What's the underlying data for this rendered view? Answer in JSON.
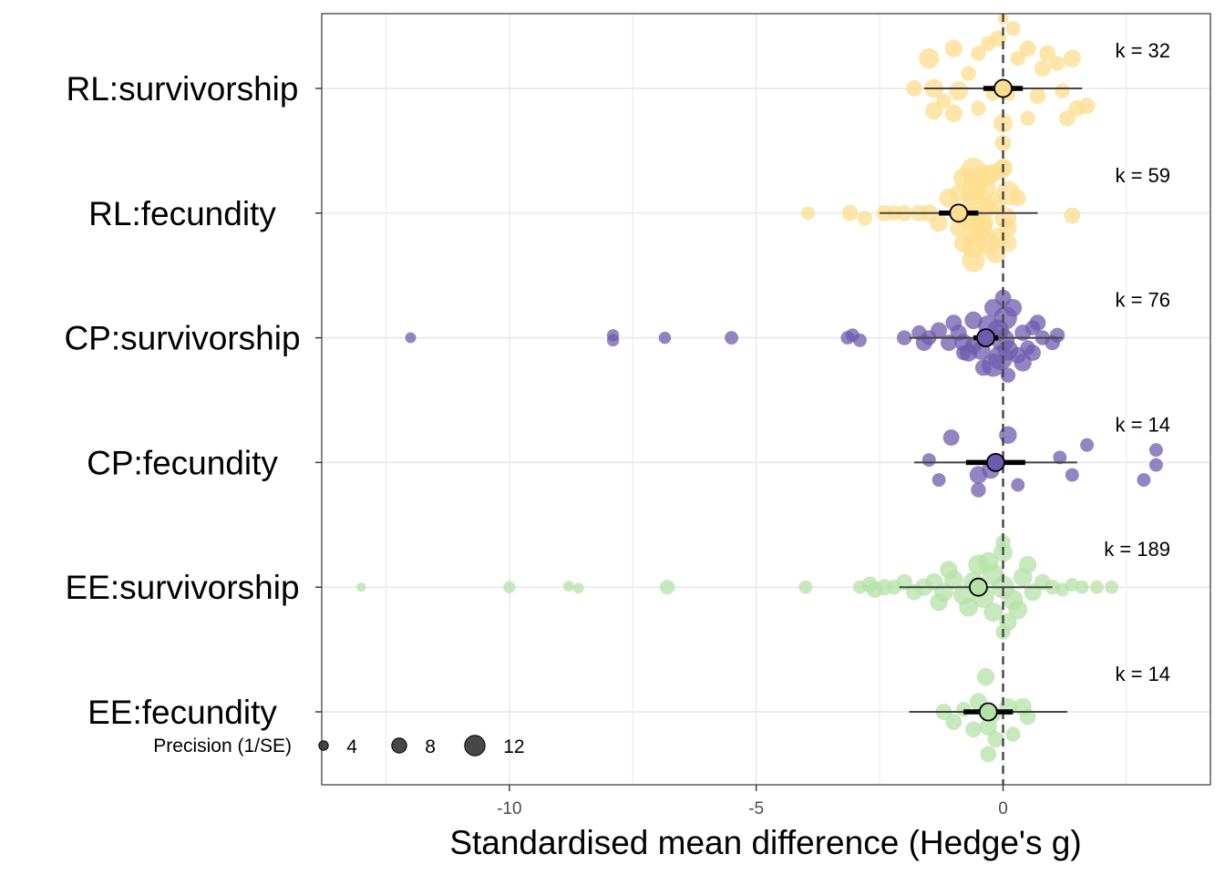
{
  "chart_data": {
    "type": "orchard",
    "xlabel": "Standardised mean difference (Hedge's g)",
    "ylabel": "",
    "xlim": [
      -13.8,
      4.2
    ],
    "xticks": [
      -10,
      -5,
      0
    ],
    "xtick_labels": [
      "-10",
      "-5",
      "0"
    ],
    "grid": true,
    "reference_line_x": 0,
    "legend": {
      "title": "Precision (1/SE)",
      "values": [
        4,
        8,
        12
      ],
      "labels": [
        "4",
        "8",
        "12"
      ],
      "placement": "bottom-left"
    },
    "categories": [
      {
        "label": "RL:survivorship",
        "k": 32,
        "k_text": "k = 32",
        "color": "#FEDE8E",
        "estimate": 0.0,
        "ci": [
          -0.4,
          0.4
        ],
        "pi": [
          -1.6,
          1.6
        ],
        "points": [
          [
            0,
            11,
            0.7
          ],
          [
            0,
            5,
            -1.4
          ],
          [
            -0.1,
            9,
            -1.0
          ],
          [
            0.2,
            8,
            -1.2
          ],
          [
            -0.3,
            8,
            -0.9
          ],
          [
            0.3,
            8,
            -0.6
          ],
          [
            -0.5,
            8,
            -0.7
          ],
          [
            0.5,
            9,
            -0.8
          ],
          [
            0.9,
            9,
            -0.7
          ],
          [
            -1.0,
            10,
            -0.8
          ],
          [
            1.4,
            10,
            -0.6
          ],
          [
            -1.5,
            12,
            -0.6
          ],
          [
            1.1,
            8,
            -0.5
          ],
          [
            0.8,
            9,
            -0.4
          ],
          [
            -0.7,
            8,
            -0.3
          ],
          [
            -1.8,
            9,
            0.0
          ],
          [
            1.7,
            9,
            0.35
          ],
          [
            -1.4,
            11,
            0.0
          ],
          [
            -0.9,
            11,
            0.05
          ],
          [
            0.7,
            9,
            0.15
          ],
          [
            0.1,
            8,
            0.1
          ],
          [
            -0.2,
            8,
            0.1
          ],
          [
            -1.2,
            8,
            0.25
          ],
          [
            1.2,
            8,
            0.05
          ],
          [
            -1.4,
            10,
            0.45
          ],
          [
            1.5,
            9,
            0.4
          ],
          [
            -1.0,
            10,
            0.5
          ],
          [
            -0.5,
            8,
            0.4
          ],
          [
            0.5,
            8,
            0.6
          ],
          [
            1.3,
            9,
            0.6
          ],
          [
            0,
            9,
            1.1
          ],
          [
            0,
            9,
            1.6
          ]
        ]
      },
      {
        "label": "RL:fecundity",
        "k": 59,
        "k_text": "k = 59",
        "color": "#FEDE8E",
        "estimate": -0.9,
        "ci": [
          -1.3,
          -0.5
        ],
        "pi": [
          -2.5,
          0.7
        ],
        "points": [
          [
            -3.95,
            7,
            0
          ],
          [
            -3.1,
            9,
            0
          ],
          [
            -2.8,
            8,
            0.1
          ],
          [
            -2.2,
            8,
            0
          ],
          [
            -2.4,
            9,
            0
          ],
          [
            -2.0,
            9,
            0
          ],
          [
            -1.7,
            9,
            0
          ],
          [
            -1.5,
            10,
            0
          ],
          [
            1.4,
            9,
            0.05
          ],
          [
            -1.3,
            10,
            0.2
          ],
          [
            -1.1,
            11,
            -0.3
          ],
          [
            0.3,
            9,
            -0.3
          ],
          [
            -0.3,
            10,
            -0.1
          ],
          [
            0.1,
            10,
            0.3
          ],
          [
            -0.6,
            16,
            -0.85
          ],
          [
            -0.55,
            15,
            -0.65
          ],
          [
            -0.6,
            15,
            -0.4
          ],
          [
            -0.6,
            14,
            -0.2
          ],
          [
            -0.6,
            15,
            0.1
          ],
          [
            -0.55,
            15,
            0.4
          ],
          [
            -0.6,
            15,
            0.65
          ],
          [
            -0.6,
            14,
            0.95
          ],
          [
            -0.4,
            15,
            -0.5
          ],
          [
            -0.3,
            14,
            0.6
          ],
          [
            -0.45,
            14,
            0.3
          ],
          [
            -0.2,
            13,
            -0.2
          ],
          [
            -0.15,
            12,
            0.8
          ],
          [
            0.1,
            15,
            -0.4
          ],
          [
            0.05,
            13,
            0.1
          ],
          [
            -0.1,
            12,
            0.5
          ],
          [
            -0.8,
            12,
            -0.7
          ],
          [
            -0.8,
            11,
            0.6
          ],
          [
            -0.9,
            10,
            0.3
          ],
          [
            -0.9,
            10,
            -0.4
          ],
          [
            0.0,
            11,
            -0.9
          ],
          [
            -0.2,
            11,
            -0.8
          ],
          [
            0.1,
            10,
            0.6
          ],
          [
            -0.35,
            13,
            -0.75
          ],
          [
            -0.75,
            13,
            0.1
          ],
          [
            -0.4,
            12,
            0.2
          ]
        ]
      },
      {
        "label": "CP:survivorship",
        "k": 76,
        "k_text": "k = 76",
        "color": "#6D5CAE",
        "estimate": -0.35,
        "ci": [
          -0.6,
          -0.1
        ],
        "pi": [
          -1.9,
          1.2
        ],
        "points": [
          [
            -12.0,
            5,
            0
          ],
          [
            -7.9,
            6,
            -0.05
          ],
          [
            -7.9,
            6,
            0.05
          ],
          [
            -6.85,
            6,
            0
          ],
          [
            -5.5,
            7,
            0
          ],
          [
            -3.15,
            7,
            0
          ],
          [
            -3.05,
            7,
            -0.05
          ],
          [
            -2.9,
            7,
            0.05
          ],
          [
            -2.0,
            8,
            0
          ],
          [
            -1.7,
            8,
            -0.1
          ],
          [
            -1.6,
            9,
            0.1
          ],
          [
            -1.5,
            8,
            0
          ],
          [
            -1.3,
            9,
            -0.15
          ],
          [
            -1.1,
            9,
            0.1
          ],
          [
            -0.9,
            9,
            -0.1
          ],
          [
            -0.8,
            10,
            0.1
          ],
          [
            -1.0,
            9,
            -0.3
          ],
          [
            -0.7,
            10,
            0.3
          ],
          [
            -0.6,
            10,
            -0.35
          ],
          [
            -0.45,
            11,
            0.25
          ],
          [
            -0.3,
            12,
            -0.25
          ],
          [
            -0.1,
            13,
            -0.15
          ],
          [
            0.0,
            14,
            0.05
          ],
          [
            0.1,
            12,
            0.25
          ],
          [
            -0.05,
            15,
            0.4
          ],
          [
            -0.2,
            14,
            0.55
          ],
          [
            0.05,
            14,
            -0.4
          ],
          [
            0.2,
            10,
            -0.6
          ],
          [
            0.3,
            9,
            0.35
          ],
          [
            0.4,
            9,
            -0.1
          ],
          [
            0.5,
            8,
            0.2
          ],
          [
            0.6,
            8,
            -0.2
          ],
          [
            0.8,
            8,
            0.0
          ],
          [
            1.0,
            8,
            0.1
          ],
          [
            1.1,
            8,
            -0.05
          ],
          [
            -0.2,
            10,
            -0.6
          ],
          [
            0.0,
            9,
            -0.8
          ],
          [
            0.1,
            8,
            0.75
          ],
          [
            -0.4,
            9,
            0.6
          ],
          [
            0.4,
            10,
            0.5
          ],
          [
            -0.6,
            9,
            0.15
          ],
          [
            -0.8,
            8,
            0.3
          ],
          [
            0.6,
            9,
            0.3
          ],
          [
            0.7,
            9,
            -0.3
          ]
        ]
      },
      {
        "label": "CP:fecundity",
        "k": 14,
        "k_text": "k = 14",
        "color": "#6D5CAE",
        "estimate": -0.15,
        "ci": [
          -0.75,
          0.45
        ],
        "pi": [
          -1.8,
          1.5
        ],
        "points": [
          [
            0.1,
            10,
            -0.55
          ],
          [
            -1.05,
            9,
            -0.5
          ],
          [
            1.7,
            7,
            -0.35
          ],
          [
            3.1,
            7,
            -0.25
          ],
          [
            1.15,
            7,
            -0.1
          ],
          [
            -1.5,
            7,
            -0.05
          ],
          [
            3.1,
            7,
            0.05
          ],
          [
            -0.25,
            10,
            0.15
          ],
          [
            -0.5,
            10,
            0.25
          ],
          [
            1.4,
            7,
            0.25
          ],
          [
            2.85,
            7,
            0.35
          ],
          [
            0.3,
            7,
            0.45
          ],
          [
            -0.5,
            8,
            0.55
          ],
          [
            -1.3,
            7,
            0.35
          ]
        ]
      },
      {
        "label": "EE:survivorship",
        "k": 189,
        "k_text": "k = 189",
        "color": "#B5E1A8",
        "estimate": -0.5,
        "ci": [
          -0.65,
          -0.35
        ],
        "pi": [
          -2.1,
          1.0
        ],
        "points": [
          [
            -13.0,
            4,
            0
          ],
          [
            -10.0,
            6,
            0
          ],
          [
            -8.8,
            5,
            -0.02
          ],
          [
            -8.6,
            5,
            0.02
          ],
          [
            -6.8,
            8,
            0
          ],
          [
            -4.0,
            7,
            0
          ],
          [
            -2.9,
            7,
            0
          ],
          [
            -2.7,
            9,
            -0.05
          ],
          [
            -2.6,
            9,
            0.05
          ],
          [
            -2.4,
            9,
            0
          ],
          [
            -2.2,
            8,
            0
          ],
          [
            -2.0,
            9,
            -0.1
          ],
          [
            -1.8,
            9,
            0.1
          ],
          [
            -1.6,
            10,
            0
          ],
          [
            -1.4,
            10,
            -0.1
          ],
          [
            -1.2,
            11,
            0.1
          ],
          [
            -1.0,
            11,
            -0.15
          ],
          [
            -0.8,
            12,
            0.15
          ],
          [
            -0.6,
            12,
            -0.1
          ],
          [
            -0.4,
            13,
            0.2
          ],
          [
            -0.2,
            13,
            -0.25
          ],
          [
            0.0,
            14,
            0.0
          ],
          [
            0.2,
            12,
            0.25
          ],
          [
            0.4,
            11,
            -0.2
          ],
          [
            0.6,
            10,
            0.1
          ],
          [
            0.8,
            9,
            -0.1
          ],
          [
            1.0,
            8,
            0.0
          ],
          [
            1.2,
            7,
            0.05
          ],
          [
            1.4,
            7,
            -0.05
          ],
          [
            1.6,
            7,
            0.0
          ],
          [
            1.9,
            7,
            0.0
          ],
          [
            2.2,
            7,
            0.0
          ],
          [
            -0.3,
            12,
            -0.5
          ],
          [
            0.0,
            11,
            -0.7
          ],
          [
            -0.2,
            11,
            0.5
          ],
          [
            0.1,
            10,
            0.7
          ],
          [
            0.0,
            8,
            -0.9
          ],
          [
            0.0,
            8,
            0.9
          ],
          [
            -1.3,
            10,
            0.3
          ],
          [
            -1.1,
            10,
            -0.35
          ],
          [
            -0.7,
            11,
            0.4
          ],
          [
            -0.5,
            12,
            -0.45
          ],
          [
            0.3,
            11,
            0.45
          ],
          [
            0.5,
            10,
            -0.45
          ]
        ]
      },
      {
        "label": "EE:fecundity",
        "k": 14,
        "k_text": "k = 14",
        "color": "#B5E1A8",
        "estimate": -0.3,
        "ci": [
          -0.8,
          0.2
        ],
        "pi": [
          -1.9,
          1.3
        ],
        "points": [
          [
            -0.35,
            10,
            -0.7
          ],
          [
            0.4,
            10,
            -0.1
          ],
          [
            -1.2,
            9,
            0.0
          ],
          [
            -0.8,
            8,
            -0.05
          ],
          [
            -0.5,
            10,
            -0.2
          ],
          [
            -0.2,
            9,
            0.05
          ],
          [
            0.1,
            10,
            -0.1
          ],
          [
            0.5,
            9,
            0.1
          ],
          [
            -0.3,
            10,
            0.3
          ],
          [
            -0.6,
            9,
            0.35
          ],
          [
            -0.15,
            9,
            0.55
          ],
          [
            0.2,
            8,
            0.45
          ],
          [
            -1.0,
            9,
            0.2
          ],
          [
            -0.3,
            9,
            0.85
          ]
        ]
      }
    ]
  }
}
